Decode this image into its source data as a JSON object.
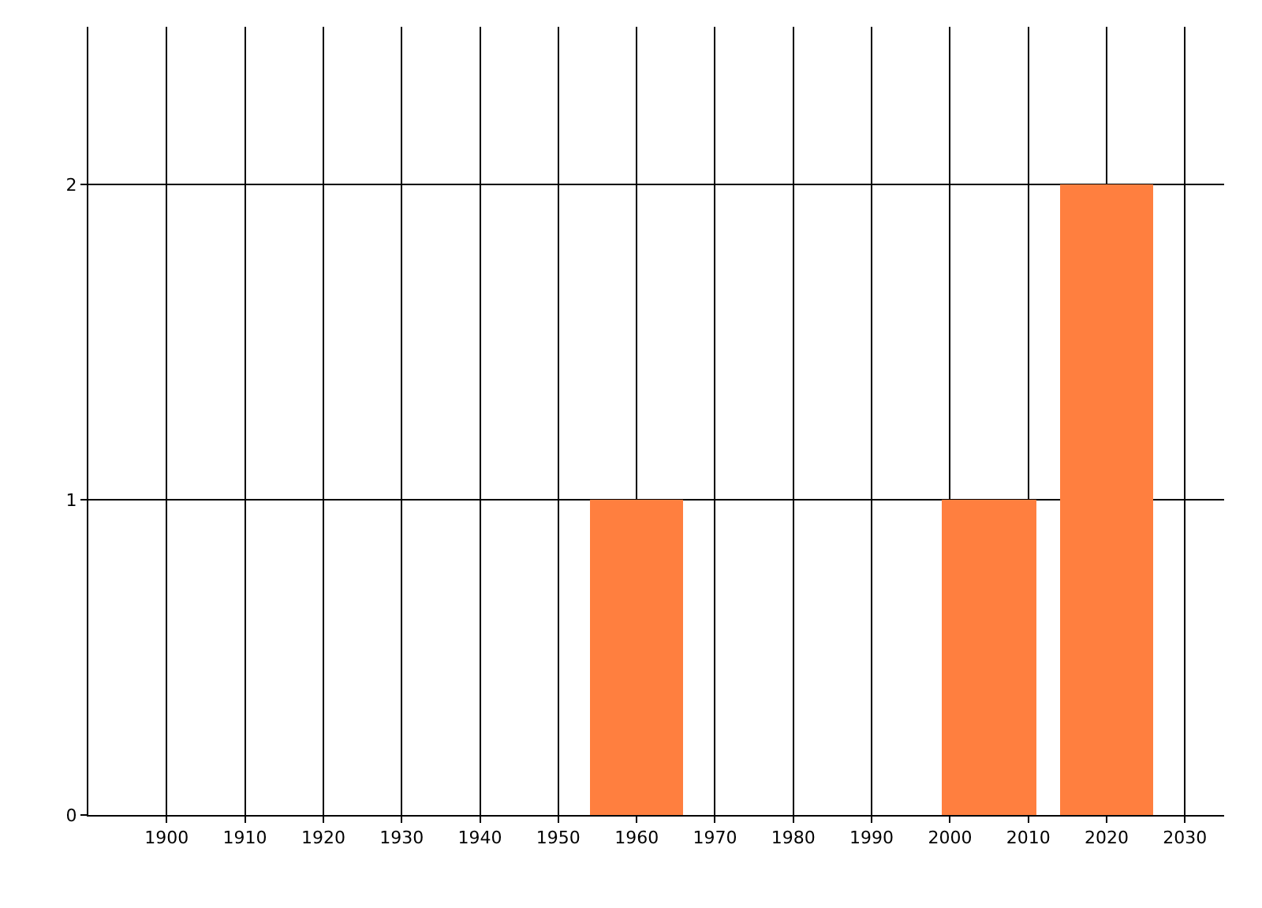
{
  "chart_data": {
    "type": "bar",
    "x": [
      1960,
      2005,
      2020
    ],
    "values": [
      1,
      1,
      2
    ],
    "color": "#ff7f3f",
    "xlim": [
      1890,
      2035
    ],
    "xticks": [
      1900,
      1910,
      1920,
      1930,
      1940,
      1950,
      1960,
      1970,
      1980,
      1990,
      2000,
      2010,
      2020,
      2030
    ],
    "ylim": [
      0,
      2.5
    ],
    "yticks": [
      0,
      1,
      2
    ],
    "grid": true
  }
}
